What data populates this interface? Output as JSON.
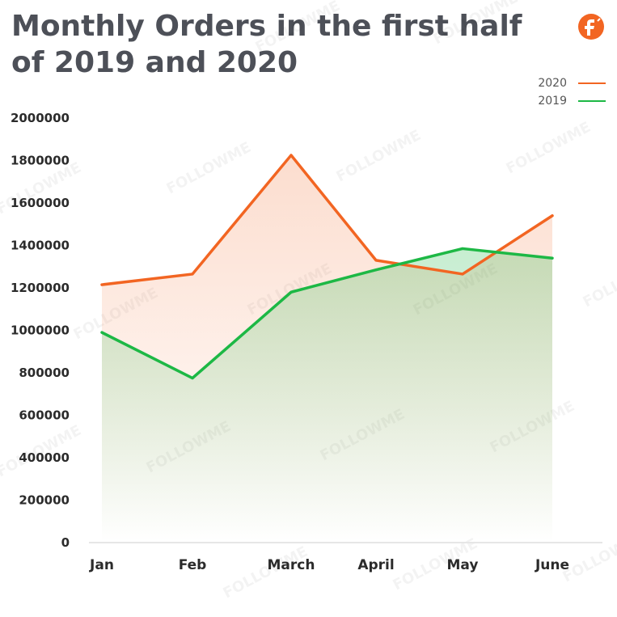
{
  "header": {
    "title": "Monthly Orders in the first half of 2019 and 2020",
    "logo_icon": "followme-logo-icon",
    "logo_color": "#f26522"
  },
  "watermark": "FOLLOWME",
  "chart_data": {
    "type": "line",
    "title": "Monthly Orders in the first half of 2019 and 2020",
    "xlabel": "",
    "ylabel": "",
    "categories": [
      "Jan",
      "Feb",
      "March",
      "April",
      "May",
      "June"
    ],
    "ylim": [
      0,
      2000000
    ],
    "yticks": [
      "0",
      "200000",
      "400000",
      "600000",
      "800000",
      "1000000",
      "1200000",
      "1400000",
      "1600000",
      "1800000",
      "2000000"
    ],
    "grid": false,
    "legend_position": "top-right",
    "series": [
      {
        "name": "2020",
        "color": "#f26522",
        "values": [
          1215000,
          1265000,
          1825000,
          1330000,
          1265000,
          1540000
        ]
      },
      {
        "name": "2019",
        "color": "#1db845",
        "values": [
          990000,
          775000,
          1180000,
          1285000,
          1385000,
          1340000
        ]
      }
    ]
  }
}
